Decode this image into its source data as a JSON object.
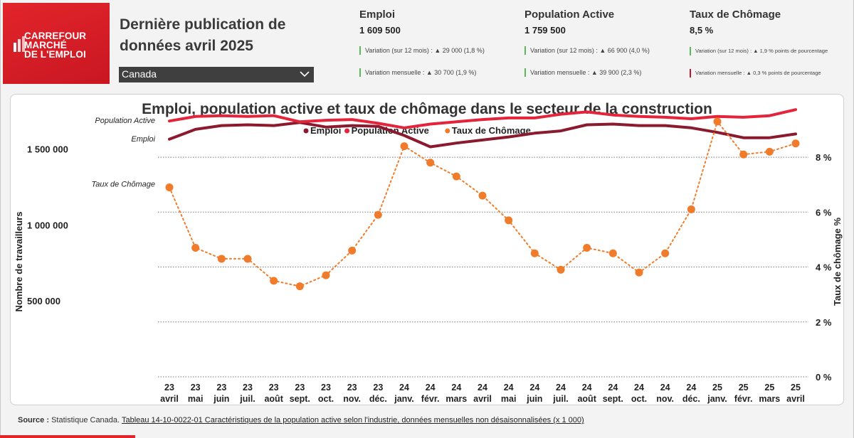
{
  "logo": {
    "lines": [
      "CARREFOUR",
      "MARCHÉ",
      "DE L'EMPLOI"
    ]
  },
  "header": {
    "title_line1": "Dernière publication de",
    "title_line2": "données avril 2025",
    "region": "Canada"
  },
  "kpis": [
    {
      "title": "Emploi",
      "value": "1 609 500",
      "annual": "Variation (sur 12 mois) : ▲ 29 000 (1,8 %)",
      "monthly": "Variation mensuelle : ▲ 30 700 (1,9 %)",
      "annual_color": "#5cb85c",
      "monthly_color": "#5cb85c"
    },
    {
      "title": "Population Active",
      "value": "1 759 500",
      "annual": "Variation (sur 12 mois) : ▲ 66 900 (4,0 %)",
      "monthly": "Variation mensuelle : ▲ 39 900 (2,3 %)",
      "annual_color": "#5cb85c",
      "monthly_color": "#5cb85c"
    },
    {
      "title": "Taux de Chômage",
      "value": "8,5 %",
      "annual": "Variation (sur 12 mois) : ▲ 1,9 % points de pourcentage",
      "monthly": "Variation mensuelle : ▲ 0,3 % points de pourcentage",
      "annual_color": "#5cb85c",
      "monthly_color": "#c0152a"
    }
  ],
  "chart_data": {
    "type": "line",
    "title": "Emploi, population active et taux de chômage dans le secteur de la construction",
    "ylabel": "Nombre de travailleurs",
    "y2label": "Taux de chômage %",
    "ylim": [
      0,
      1700000
    ],
    "y2lim": [
      0,
      9.4
    ],
    "yticks": [
      500000,
      1000000,
      1500000
    ],
    "ytick_labels": [
      "500 000",
      "1 000 000",
      "1 500 000"
    ],
    "y2ticks": [
      0,
      2,
      4,
      6,
      8
    ],
    "y2tick_labels": [
      "0 %",
      "2 %",
      "4 %",
      "6 %",
      "8 %"
    ],
    "legend_position": "top-center",
    "categories": [
      [
        "23",
        "avril"
      ],
      [
        "23",
        "mai"
      ],
      [
        "23",
        "juin"
      ],
      [
        "23",
        "juil."
      ],
      [
        "23",
        "août"
      ],
      [
        "23",
        "sept."
      ],
      [
        "23",
        "oct."
      ],
      [
        "23",
        "nov."
      ],
      [
        "23",
        "déc."
      ],
      [
        "24",
        "janv."
      ],
      [
        "24",
        "févr."
      ],
      [
        "24",
        "mars"
      ],
      [
        "24",
        "avril"
      ],
      [
        "24",
        "mai"
      ],
      [
        "24",
        "juin"
      ],
      [
        "24",
        "juil."
      ],
      [
        "24",
        "août"
      ],
      [
        "24",
        "sept."
      ],
      [
        "24",
        "oct."
      ],
      [
        "24",
        "nov."
      ],
      [
        "24",
        "déc."
      ],
      [
        "25",
        "janv."
      ],
      [
        "25",
        "févr."
      ],
      [
        "25",
        "mars"
      ],
      [
        "25",
        "avril"
      ]
    ],
    "series": [
      {
        "name": "Emploi",
        "axis": "left",
        "color": "#8b1a2f",
        "style": "solid",
        "inline_label": "Emploi",
        "values": [
          1565000,
          1630000,
          1655000,
          1660000,
          1655000,
          1675000,
          1645000,
          1655000,
          1650000,
          1590000,
          1515000,
          1540000,
          1560000,
          1580000,
          1605000,
          1620000,
          1660000,
          1665000,
          1655000,
          1655000,
          1640000,
          1610000,
          1575000,
          1575000,
          1600000
        ]
      },
      {
        "name": "Population Active",
        "axis": "left",
        "color": "#e3243b",
        "style": "solid",
        "inline_label": "Population Active",
        "values": [
          1685000,
          1715000,
          1720000,
          1715000,
          1720000,
          1680000,
          1690000,
          1695000,
          1670000,
          1640000,
          1665000,
          1680000,
          1695000,
          1705000,
          1705000,
          1730000,
          1745000,
          1725000,
          1715000,
          1710000,
          1700000,
          1715000,
          1710000,
          1720000,
          1760000
        ]
      },
      {
        "name": "Taux de Chômage",
        "axis": "right",
        "color": "#f07b2a",
        "style": "dotted",
        "markers": true,
        "inline_label": "Taux de Chômage",
        "values": [
          6.9,
          4.7,
          4.3,
          4.3,
          3.5,
          3.3,
          3.7,
          4.6,
          5.9,
          8.4,
          7.8,
          7.3,
          6.6,
          5.7,
          4.5,
          3.9,
          4.7,
          4.5,
          3.8,
          4.5,
          6.1,
          9.3,
          8.1,
          8.2,
          8.5
        ]
      }
    ]
  },
  "footer": {
    "source_label": "Source :",
    "source_text": "Statistique Canada.",
    "link_text": "Tableau 14-10-0022-01 Caractéristiques de la population active selon l'industrie, données mensuelles non désaisonnalisées (x 1 000)"
  }
}
